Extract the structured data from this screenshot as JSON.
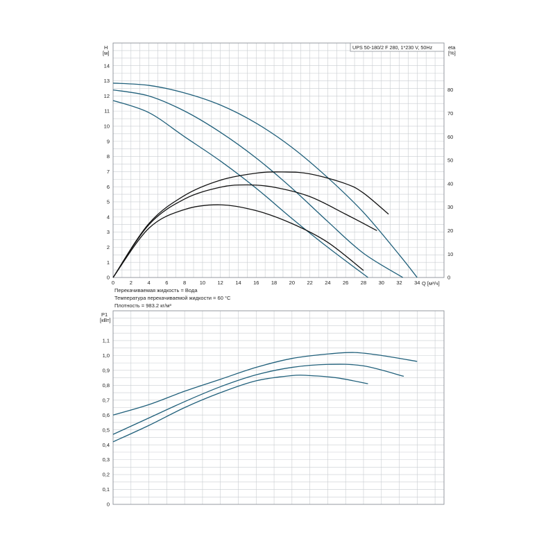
{
  "model_label": "UPS 50-180/2 F 280, 1*230 V, 50Hz",
  "info": {
    "liquid": "Перекачиваемая жидкость = Вода",
    "temperature": "Температура перекачиваемой жидкости = 60 °C",
    "density": "Плотность = 983.2 кг/м³"
  },
  "colors": {
    "head_curve": "#1f5f7a",
    "eta_curve": "#111111",
    "grid": "#c8ccd0",
    "frame": "#8a9096"
  },
  "chart_data": [
    {
      "type": "line",
      "title": "UPS 50-180/2 F 280, 1*230 V, 50Hz",
      "xlabel": "Q [м³/ч]",
      "ylabel": "H [м]",
      "ylabel_lines": [
        "H",
        "[м]"
      ],
      "y2label_lines": [
        "eta",
        "[%]"
      ],
      "xlim": [
        0,
        37
      ],
      "ylim": [
        0,
        15.5
      ],
      "y2lim": [
        0,
        100
      ],
      "x_ticks": [
        0,
        2,
        4,
        6,
        8,
        10,
        12,
        14,
        16,
        18,
        20,
        22,
        24,
        26,
        28,
        30,
        32,
        34
      ],
      "y_ticks": [
        0,
        1,
        2,
        3,
        4,
        5,
        6,
        7,
        8,
        9,
        10,
        11,
        12,
        13,
        14
      ],
      "y2_ticks": [
        0,
        10,
        20,
        30,
        40,
        50,
        60,
        70,
        80
      ],
      "grid": true,
      "series": [
        {
          "axis": "left",
          "x": [
            0,
            4,
            8,
            12,
            16,
            20,
            24,
            28,
            32,
            34
          ],
          "values": [
            12.85,
            12.7,
            12.2,
            11.4,
            10.2,
            8.6,
            6.6,
            4.3,
            1.5,
            0
          ]
        },
        {
          "axis": "left",
          "x": [
            0,
            4,
            8,
            12,
            16,
            20,
            24,
            28,
            32.4
          ],
          "values": [
            12.4,
            12.0,
            11.0,
            9.6,
            7.9,
            5.9,
            3.7,
            1.6,
            0
          ]
        },
        {
          "axis": "left",
          "x": [
            0,
            4,
            8,
            12,
            16,
            20,
            24,
            28.5
          ],
          "values": [
            11.7,
            10.9,
            9.3,
            7.7,
            5.9,
            3.9,
            2.0,
            0
          ]
        },
        {
          "axis": "right",
          "x": [
            0,
            4,
            8,
            12,
            16,
            19,
            22,
            26,
            28,
            30.8
          ],
          "values": [
            0,
            23,
            35,
            41.5,
            44.5,
            45,
            44.2,
            40,
            36,
            27
          ]
        },
        {
          "axis": "right",
          "x": [
            0,
            4,
            8,
            12,
            15,
            18,
            22,
            26,
            29.5
          ],
          "values": [
            0,
            22.5,
            33.5,
            38.5,
            39.5,
            38.5,
            34.5,
            27,
            20
          ]
        },
        {
          "axis": "right",
          "x": [
            0,
            4,
            8,
            12,
            16,
            20,
            24,
            28
          ],
          "values": [
            0,
            21,
            29,
            31,
            28.5,
            23,
            15,
            3
          ]
        }
      ]
    },
    {
      "type": "line",
      "xlabel": "",
      "ylabel": "P1 [кВт]",
      "ylabel_lines": [
        "P1",
        "[кВт]"
      ],
      "xlim": [
        0,
        37
      ],
      "ylim": [
        0,
        1.3
      ],
      "y_ticks": [
        0,
        0.1,
        0.2,
        0.3,
        0.4,
        0.5,
        0.6,
        0.7,
        0.8,
        0.9,
        1.0,
        1.1
      ],
      "y_tick_labels": [
        "0",
        "0,1",
        "0,2",
        "0,3",
        "0,4",
        "0,5",
        "0,6",
        "0,7",
        "0,8",
        "0,9",
        "1,0",
        "1,1"
      ],
      "grid": true,
      "series": [
        {
          "x": [
            0,
            4,
            8,
            12,
            16,
            20,
            24,
            27,
            30,
            34
          ],
          "values": [
            0.6,
            0.67,
            0.76,
            0.84,
            0.92,
            0.98,
            1.01,
            1.02,
            1.0,
            0.96
          ]
        },
        {
          "x": [
            0,
            4,
            8,
            12,
            16,
            20,
            24,
            28,
            32.5
          ],
          "values": [
            0.47,
            0.58,
            0.69,
            0.79,
            0.87,
            0.92,
            0.94,
            0.93,
            0.86
          ]
        },
        {
          "x": [
            0,
            4,
            8,
            12,
            16,
            20,
            22,
            25,
            28.5
          ],
          "values": [
            0.42,
            0.53,
            0.65,
            0.75,
            0.83,
            0.865,
            0.865,
            0.85,
            0.81
          ]
        }
      ]
    }
  ]
}
